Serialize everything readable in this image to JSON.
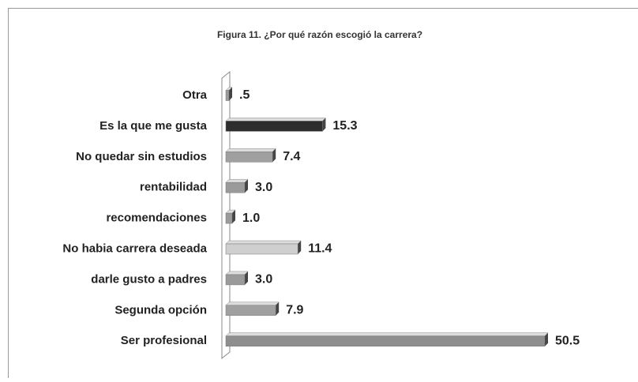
{
  "chart_data": {
    "type": "bar",
    "orientation": "horizontal",
    "title": "Figura 11.  ¿Por qué razón escogió la carrera?",
    "categories": [
      "Otra",
      "Es la que me gusta",
      "No quedar sin estudios",
      "rentabilidad",
      "recomendaciones",
      "No habia carrera deseada",
      "darle gusto a padres",
      "Segunda opción",
      "Ser profesional"
    ],
    "values": [
      0.5,
      15.3,
      7.4,
      3.0,
      1.0,
      11.4,
      3.0,
      7.9,
      50.5
    ],
    "value_labels": [
      ".5",
      "15.3",
      "7.4",
      "3.0",
      "1.0",
      "11.4",
      "3.0",
      "7.9",
      "50.5"
    ],
    "colors": [
      "#9a9a9a",
      "#2e2e2e",
      "#a0a0a0",
      "#9a9a9a",
      "#9a9a9a",
      "#cfcfcf",
      "#9a9a9a",
      "#a0a0a0",
      "#8e8e8e"
    ]
  }
}
